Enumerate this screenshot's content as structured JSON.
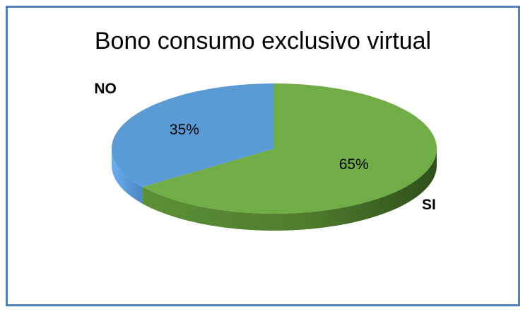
{
  "chart_data": {
    "type": "pie",
    "title": "Bono consumo exclusivo virtual",
    "slices": [
      {
        "label": "SI",
        "value": 65,
        "value_label": "65%",
        "color": "#70ad47"
      },
      {
        "label": "NO",
        "value": 35,
        "value_label": "35%",
        "color": "#5b9bd5"
      }
    ],
    "style": "3d",
    "legend": "none",
    "border_color": "#4f81bd"
  }
}
